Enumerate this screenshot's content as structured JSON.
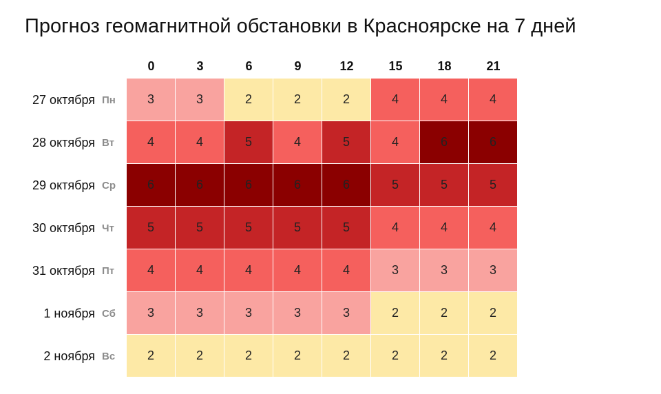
{
  "title": "Прогноз геомагнитной обстановки в Красноярске на 7 дней",
  "colors": {
    "2": "#fde9a6",
    "3": "#f9a39f",
    "4": "#f5605d",
    "5": "#c42426",
    "6": "#8b0000"
  },
  "chart_data": {
    "type": "heatmap",
    "title": "Прогноз геомагнитной обстановки в Красноярске на 7 дней",
    "columns": [
      "0",
      "3",
      "6",
      "9",
      "12",
      "15",
      "18",
      "21"
    ],
    "rows": [
      {
        "date": "27 октября",
        "dow": "Пн"
      },
      {
        "date": "28 октября",
        "dow": "Вт"
      },
      {
        "date": "29 октября",
        "dow": "Ср"
      },
      {
        "date": "30 октября",
        "dow": "Чт"
      },
      {
        "date": "31 октября",
        "dow": "Пт"
      },
      {
        "date": "1 ноября",
        "dow": "Сб"
      },
      {
        "date": "2 ноября",
        "dow": "Вс"
      }
    ],
    "values": [
      [
        3,
        3,
        2,
        2,
        2,
        4,
        4,
        4
      ],
      [
        4,
        4,
        5,
        4,
        5,
        4,
        6,
        6
      ],
      [
        6,
        6,
        6,
        6,
        6,
        5,
        5,
        5
      ],
      [
        5,
        5,
        5,
        5,
        5,
        4,
        4,
        4
      ],
      [
        4,
        4,
        4,
        4,
        4,
        3,
        3,
        3
      ],
      [
        3,
        3,
        3,
        3,
        3,
        2,
        2,
        2
      ],
      [
        2,
        2,
        2,
        2,
        2,
        2,
        2,
        2
      ]
    ]
  }
}
